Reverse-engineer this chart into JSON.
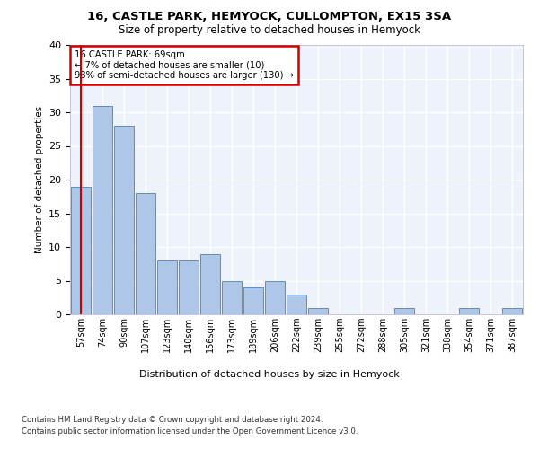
{
  "title1": "16, CASTLE PARK, HEMYOCK, CULLOMPTON, EX15 3SA",
  "title2": "Size of property relative to detached houses in Hemyock",
  "xlabel": "Distribution of detached houses by size in Hemyock",
  "ylabel": "Number of detached properties",
  "bar_labels": [
    "57sqm",
    "74sqm",
    "90sqm",
    "107sqm",
    "123sqm",
    "140sqm",
    "156sqm",
    "173sqm",
    "189sqm",
    "206sqm",
    "222sqm",
    "239sqm",
    "255sqm",
    "272sqm",
    "288sqm",
    "305sqm",
    "321sqm",
    "338sqm",
    "354sqm",
    "371sqm",
    "387sqm"
  ],
  "bar_values": [
    19,
    31,
    28,
    18,
    8,
    8,
    9,
    5,
    4,
    5,
    3,
    1,
    0,
    0,
    0,
    1,
    0,
    0,
    1,
    0,
    1
  ],
  "bar_color": "#aec6e8",
  "bar_edge_color": "#5a8fc2",
  "annotation_text_line1": "16 CASTLE PARK: 69sqm",
  "annotation_text_line2": "← 7% of detached houses are smaller (10)",
  "annotation_text_line3": "93% of semi-detached houses are larger (130) →",
  "red_line_color": "#cc0000",
  "annotation_box_edge": "#cc0000",
  "background_color": "#eef2fb",
  "grid_color": "#ffffff",
  "ylim": [
    0,
    40
  ],
  "yticks": [
    0,
    5,
    10,
    15,
    20,
    25,
    30,
    35,
    40
  ],
  "footer_line1": "Contains HM Land Registry data © Crown copyright and database right 2024.",
  "footer_line2": "Contains public sector information licensed under the Open Government Licence v3.0."
}
